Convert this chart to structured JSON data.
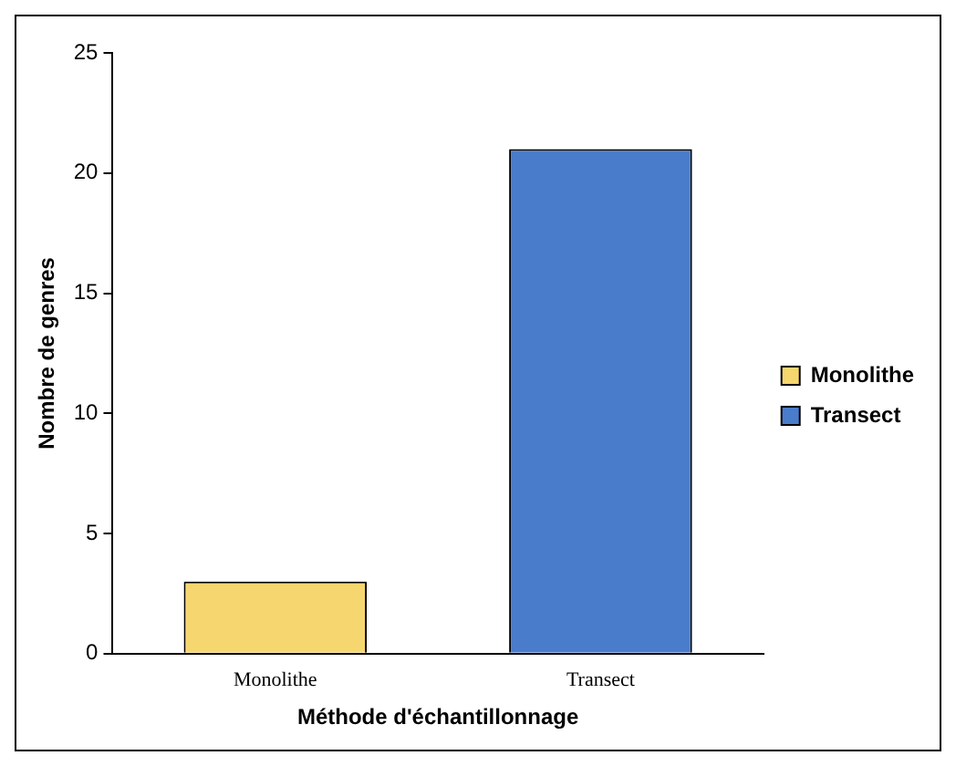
{
  "chart_data": {
    "type": "bar",
    "xlabel": "Méthode d'échantillonnage",
    "ylabel": "Nombre de genres",
    "categories": [
      "Monolithe",
      "Transect"
    ],
    "series": [
      {
        "name": "Monolithe",
        "color": "#f6d66f",
        "values": [
          3,
          null
        ]
      },
      {
        "name": "Transect",
        "color": "#4a7ccc",
        "values": [
          null,
          21
        ]
      }
    ],
    "ylim": [
      0,
      25
    ],
    "yticks": [
      0,
      5,
      10,
      15,
      20,
      25
    ],
    "grid": false,
    "legend": "right"
  }
}
